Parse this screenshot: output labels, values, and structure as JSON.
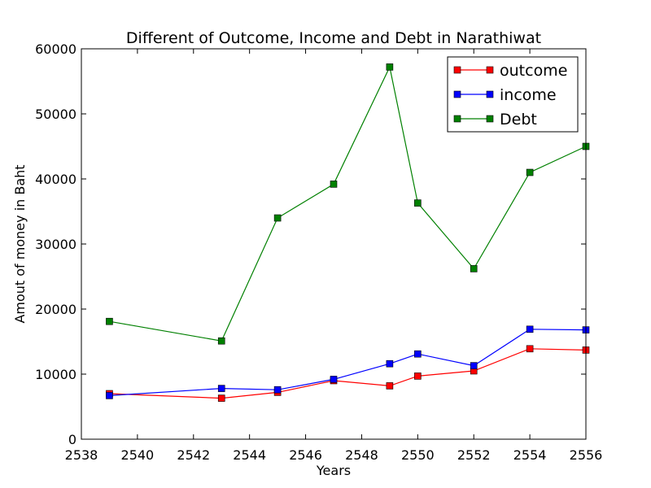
{
  "chart_data": {
    "type": "line",
    "title": "Different of Outcome, Income and Debt in Narathiwat",
    "xlabel": "Years",
    "ylabel": "Amout of money in Baht",
    "xlim": [
      2538,
      2556
    ],
    "ylim": [
      0,
      60000
    ],
    "xticks": [
      2538,
      2540,
      2542,
      2544,
      2546,
      2548,
      2550,
      2552,
      2554,
      2556
    ],
    "yticks": [
      0,
      10000,
      20000,
      30000,
      40000,
      50000,
      60000
    ],
    "grid": false,
    "legend_position": "top-right",
    "x": [
      2539,
      2543,
      2545,
      2547,
      2549,
      2550,
      2552,
      2554,
      2556
    ],
    "series": [
      {
        "name": "outcome",
        "color": "#ff0000",
        "values": [
          7000,
          6300,
          7200,
          9000,
          8200,
          9700,
          10500,
          13900,
          13700
        ]
      },
      {
        "name": "income",
        "color": "#0000ff",
        "values": [
          6700,
          7800,
          7600,
          9200,
          11600,
          13100,
          11300,
          16900,
          16800
        ]
      },
      {
        "name": "Debt",
        "color": "#008000",
        "values": [
          18100,
          15100,
          34000,
          39200,
          57200,
          36300,
          26200,
          41000,
          45000
        ]
      }
    ]
  }
}
